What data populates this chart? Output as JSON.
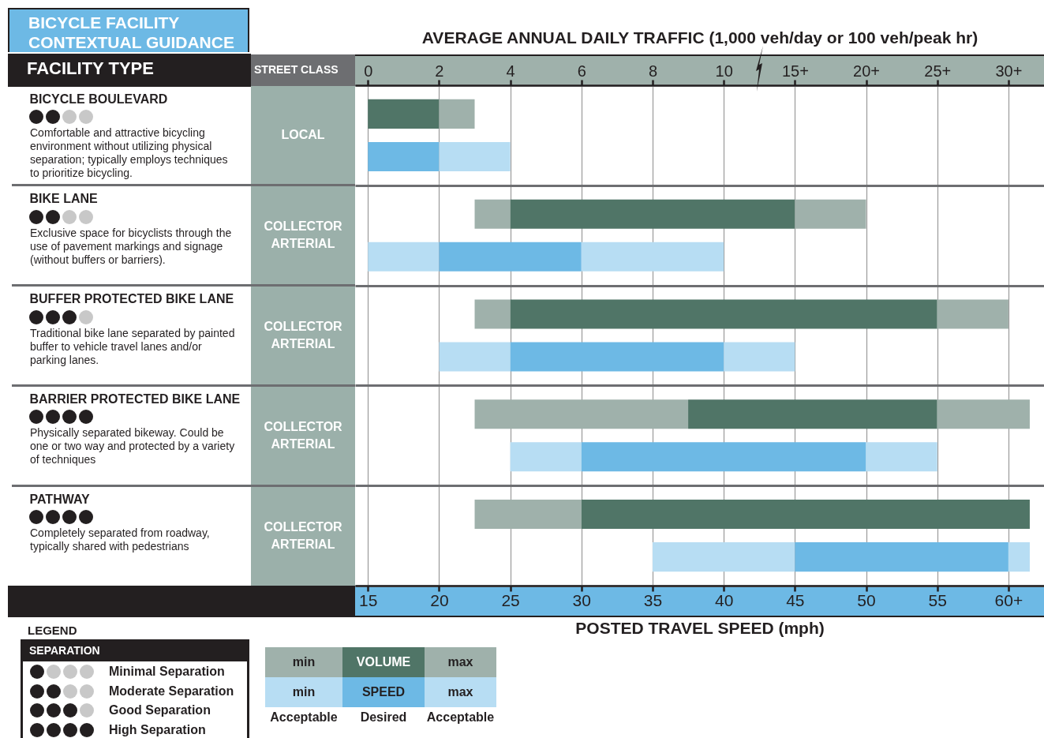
{
  "chart_data": {
    "type": "bar",
    "orientation": "horizontal",
    "title": "BICYCLE FACILITY CONTEXTUAL GUIDANCE",
    "ylabel": "FACILITY TYPE",
    "x2label": "AVERAGE ANNUAL DAILY TRAFFIC (1,000 veh/day or 100 veh/peak hr)",
    "xlabel": "POSTED TRAVEL SPEED (mph)",
    "categories": [
      "BICYCLE BOULEVARD",
      "BIKE LANE",
      "BUFFER PROTECTED BIKE LANE",
      "BARRIER PROTECTED BIKE LANE",
      "PATHWAY"
    ],
    "xlim": [
      14.1,
      62.5
    ],
    "xticks": [
      15,
      20,
      25,
      30,
      35,
      40,
      45,
      50,
      55,
      {
        "value": 60,
        "label": "60+"
      }
    ],
    "x2lim": [
      -0.36,
      19
    ],
    "x2ticks": [
      0,
      2,
      4,
      6,
      8,
      10,
      {
        "value": 12,
        "label": "15+"
      },
      {
        "value": 14,
        "label": "20+"
      },
      {
        "value": 16,
        "label": "25+"
      },
      {
        "value": 18,
        "label": "30+"
      }
    ],
    "series": [
      {
        "name": "min",
        "color": "#9fb1ab",
        "axis": "x2",
        "base": [
          null,
          3,
          3,
          3,
          3
        ],
        "values": [
          null,
          1,
          1,
          6,
          3
        ]
      },
      {
        "name": "VOLUME",
        "color": "#507567",
        "axis": "x2",
        "base": [
          0,
          4,
          4,
          9,
          6
        ],
        "values": [
          2,
          8,
          12,
          7,
          12.6
        ]
      },
      {
        "name": "max",
        "color": "#9fb1ab",
        "axis": "x2",
        "base": [
          2,
          12,
          16,
          16,
          null
        ],
        "values": [
          1,
          2,
          2,
          2.6,
          null
        ]
      },
      {
        "name": "min",
        "color": "#b7ddf3",
        "base": [
          null,
          15,
          20,
          25,
          35
        ],
        "values": [
          null,
          5,
          5,
          5,
          10
        ]
      },
      {
        "name": "SPEED",
        "color": "#6db9e5",
        "base": [
          15,
          20,
          25,
          30,
          45
        ],
        "values": [
          5,
          10,
          15,
          20,
          15
        ]
      },
      {
        "name": "max",
        "color": "#b7ddf3",
        "base": [
          20,
          30,
          40,
          50,
          60
        ],
        "values": [
          5,
          10,
          5,
          5,
          1.5
        ]
      }
    ],
    "grid": true,
    "legend": "bottom left",
    "annotations": [
      "STREET CLASS",
      "LOCAL",
      "COLLECTOR ARTERIAL",
      "COLLECTOR ARTERIAL",
      "COLLECTOR ARTERIAL",
      "COLLECTOR ARTERIAL",
      "Comfortable and attractive bicycling environment without utilizing physical separation; typically employs techniques to prioritize bicycling.",
      "Exclusive space for bicyclists through the use of pavement markings and signage (without buffers or barriers).",
      "Traditional bike lane separated by painted buffer to vehicle travel lanes and/or parking lanes.",
      "Physically separated bikeway. Could be one or two way and protected by a variety of techniques",
      "Completely separated from roadway, typically shared with pedestrians",
      "LEGEND",
      "SEPARATION",
      "Minimal Separation",
      "Moderate Separation",
      "Good Separation",
      "High Separation",
      "Acceptable",
      "Desired",
      "Acceptable"
    ]
  }
}
